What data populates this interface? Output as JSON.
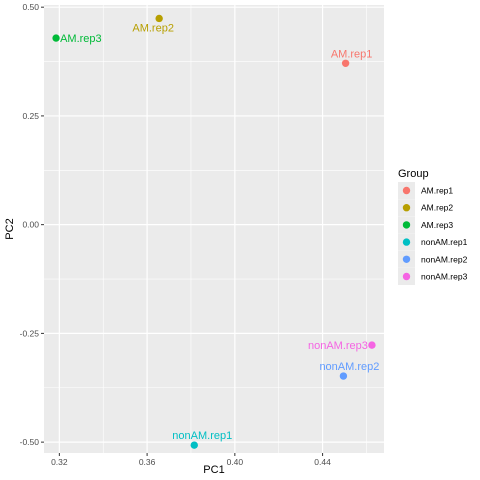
{
  "chart_data": {
    "type": "scatter",
    "xlabel": "PC1",
    "ylabel": "PC2",
    "xlim": [
      0.313,
      0.468
    ],
    "ylim": [
      -0.525,
      0.505
    ],
    "x_ticks": [
      0.32,
      0.36,
      0.4,
      0.44
    ],
    "x_tick_labels": [
      "0.32",
      "0.36",
      "0.40",
      "0.44"
    ],
    "y_ticks": [
      -0.5,
      -0.25,
      0.0,
      0.25,
      0.5
    ],
    "y_tick_labels": [
      "-0.50",
      "-0.25",
      "0.00",
      "0.25",
      "0.50"
    ],
    "grid": true,
    "legend": {
      "title": "Group",
      "placement": "right"
    },
    "series": [
      {
        "name": "AM.rep1",
        "color": "#F8766D",
        "x": 0.4505,
        "y": 0.371
      },
      {
        "name": "AM.rep2",
        "color": "#B79F00",
        "x": 0.3655,
        "y": 0.474
      },
      {
        "name": "AM.rep3",
        "color": "#00BA38",
        "x": 0.3185,
        "y": 0.429
      },
      {
        "name": "nonAM.rep1",
        "color": "#00BFC4",
        "x": 0.3815,
        "y": -0.507
      },
      {
        "name": "nonAM.rep2",
        "color": "#619CFF",
        "x": 0.4495,
        "y": -0.348
      },
      {
        "name": "nonAM.rep3",
        "color": "#F564E3",
        "x": 0.4625,
        "y": -0.277
      }
    ],
    "point_labels": [
      "AM.rep1",
      "AM.rep2",
      "AM.rep3",
      "nonAM.rep1",
      "nonAM.rep2",
      "nonAM.rep3"
    ]
  }
}
